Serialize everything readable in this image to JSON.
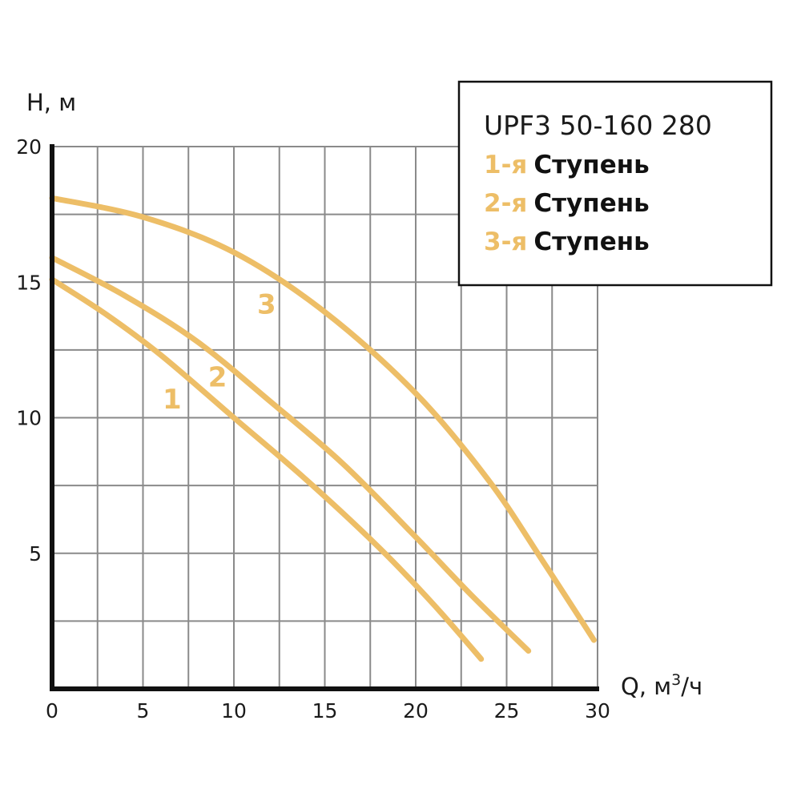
{
  "chart_data": {
    "type": "line",
    "title": "UPF3 50-160 280",
    "xlabel_main": "Q, м",
    "xlabel_sup": "3",
    "xlabel_tail": "/ч",
    "ylabel": "H, м",
    "xlim": [
      0,
      30
    ],
    "ylim": [
      0,
      20
    ],
    "x_ticks": [
      0,
      5,
      10,
      15,
      20,
      25,
      30
    ],
    "y_ticks": [
      5,
      10,
      15,
      20
    ],
    "grid": true,
    "grid_x_step": 2.5,
    "grid_y_step": 2.5,
    "legend_position": "top-right",
    "curve_color": "#EDBE67",
    "legend": [
      {
        "num": "1-я",
        "word": "Ступень"
      },
      {
        "num": "2-я",
        "word": "Ступень"
      },
      {
        "num": "3-я",
        "word": "Ступень"
      }
    ],
    "series": [
      {
        "label": "1",
        "label_at": [
          6.6,
          10.7
        ],
        "points": [
          [
            0,
            15.1
          ],
          [
            3,
            13.8
          ],
          [
            6,
            12.3
          ],
          [
            10,
            10.0
          ],
          [
            14,
            7.7
          ],
          [
            18,
            5.2
          ],
          [
            21,
            3.1
          ],
          [
            23.6,
            1.1
          ]
        ]
      },
      {
        "label": "2",
        "label_at": [
          9.1,
          11.5
        ],
        "points": [
          [
            0,
            15.9
          ],
          [
            4,
            14.5
          ],
          [
            8,
            12.8
          ],
          [
            12,
            10.6
          ],
          [
            16,
            8.3
          ],
          [
            20,
            5.6
          ],
          [
            23,
            3.5
          ],
          [
            26.2,
            1.4
          ]
        ]
      },
      {
        "label": "3",
        "label_at": [
          11.8,
          14.2
        ],
        "points": [
          [
            0,
            18.1
          ],
          [
            5,
            17.4
          ],
          [
            10,
            16.1
          ],
          [
            15,
            13.9
          ],
          [
            20,
            10.9
          ],
          [
            24,
            7.7
          ],
          [
            27,
            4.7
          ],
          [
            29.8,
            1.8
          ]
        ]
      }
    ]
  }
}
